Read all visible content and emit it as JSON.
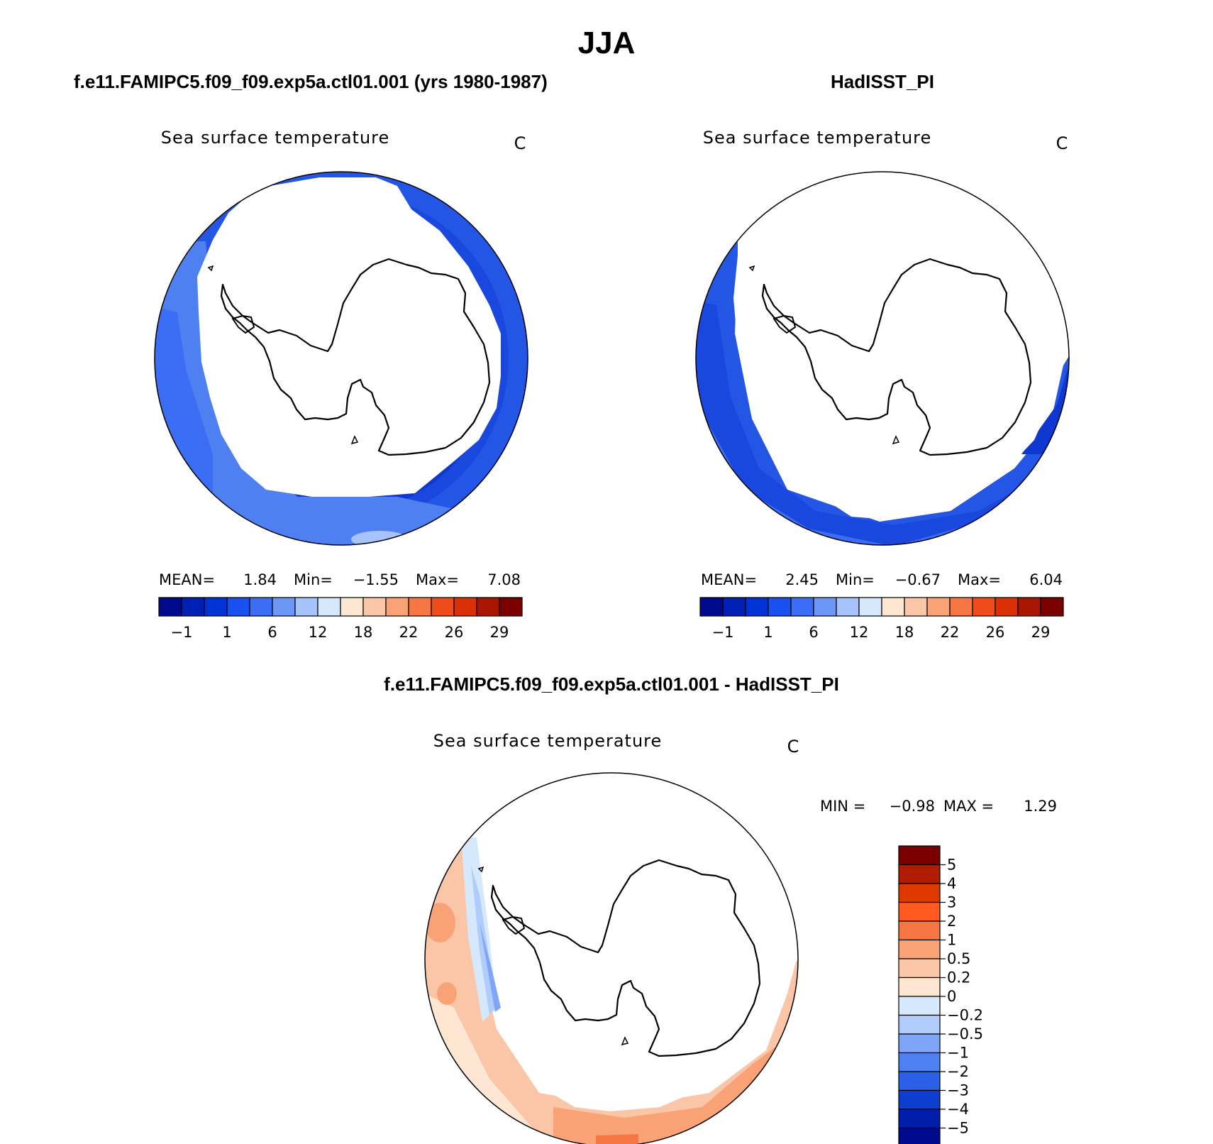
{
  "figure": {
    "title": "JJA",
    "colors": {
      "land": "#ffffff",
      "outline": "#000000",
      "ice": "#ffffff"
    }
  },
  "panels": {
    "model": {
      "heading": "f.e11.FAMIPC5.f09_f09.exp5a.ctl01.001 (yrs 1980-1987)",
      "field_label": "Sea surface temperature",
      "units": "C",
      "stats": {
        "mean_label": "MEAN=",
        "mean": "1.84",
        "min_label": "Min=",
        "min": "−1.55",
        "max_label": "Max=",
        "max": "7.08"
      }
    },
    "obs": {
      "heading": "HadISST_PI",
      "field_label": "Sea surface temperature",
      "units": "C",
      "stats": {
        "mean_label": "MEAN=",
        "mean": "2.45",
        "min_label": "Min=",
        "min": "−0.67",
        "max_label": "Max=",
        "max": "6.04"
      }
    },
    "diff": {
      "heading": "f.e11.FAMIPC5.f09_f09.exp5a.ctl01.001 - HadISST_PI",
      "field_label": "Sea surface temperature",
      "units": "C",
      "stats": {
        "min_label": "MIN =",
        "min": "−0.98",
        "max_label": "MAX =",
        "max": "1.29"
      }
    }
  },
  "colorbars": {
    "abs": {
      "colors": [
        "#000a8c",
        "#0020b4",
        "#0033d6",
        "#1a50f0",
        "#3b6ef5",
        "#6c97f7",
        "#a6c4fb",
        "#d6e8fb",
        "#fde6d2",
        "#fbc6a8",
        "#f9a276",
        "#f77744",
        "#ef4c1c",
        "#d93005",
        "#a81600",
        "#7a0000"
      ],
      "labels": [
        "−1",
        "1",
        "6",
        "12",
        "18",
        "22",
        "26",
        "29"
      ]
    },
    "diff": {
      "colors": [
        "#7a0000",
        "#b01c00",
        "#de3a00",
        "#ff5a1f",
        "#f77744",
        "#f9a276",
        "#fbc6a8",
        "#fde6d2",
        "#d6e8fb",
        "#b0ccfb",
        "#7fa5f8",
        "#4f80f2",
        "#2a5fe8",
        "#0d3ed0",
        "#001eaa",
        "#000a8c"
      ],
      "labels": [
        "5",
        "4",
        "3",
        "2",
        "1",
        "0.5",
        "0.2",
        "0",
        "−0.2",
        "−0.5",
        "−1",
        "−2",
        "−3",
        "−4",
        "−5"
      ]
    }
  }
}
